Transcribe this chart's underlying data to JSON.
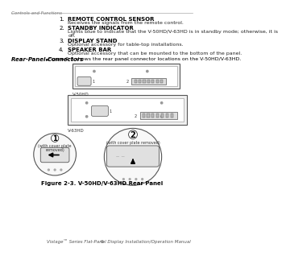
{
  "page_header": "Controls and Functions",
  "items": [
    {
      "num": "1.",
      "title": "REMOTE CONTROL SENSOR",
      "body": "Receives the signals from the remote control."
    },
    {
      "num": "2.",
      "title": "STANDBY INDICATOR",
      "body": "Lights blue to indicate that the V-50HD/V-63HD is in standby mode; otherwise, it is\noff."
    },
    {
      "num": "3.",
      "title": "DISPLAY STAND",
      "body": "Optional accessory for table-top installations."
    },
    {
      "num": "4.",
      "title": "SPEAKER BAR",
      "body": "Optional accessory that can be mounted to the bottom of the panel."
    }
  ],
  "rear_panel_label": "Rear-Panel Connectors",
  "rear_panel_arrow": "►",
  "rear_panel_text": "Figure 2-3 shows the rear panel connector locations on the V-50HD/V-63HD.",
  "v50hd_label": "V-50HD",
  "v63hd_label": "V-63HD",
  "circle1_label": "1",
  "circle1_sub": "(with cover plate\nremoved)",
  "circle2_label": "2",
  "circle2_sub": "(with cover plate removed)",
  "figure_caption": "Figure 2-3. V-50HD/V-63HD Rear Panel",
  "footer_page": "6",
  "footer_text": "Vistage™ Series Flat-Panel Display Installation/Operation Manual",
  "bg_color": "#ffffff"
}
